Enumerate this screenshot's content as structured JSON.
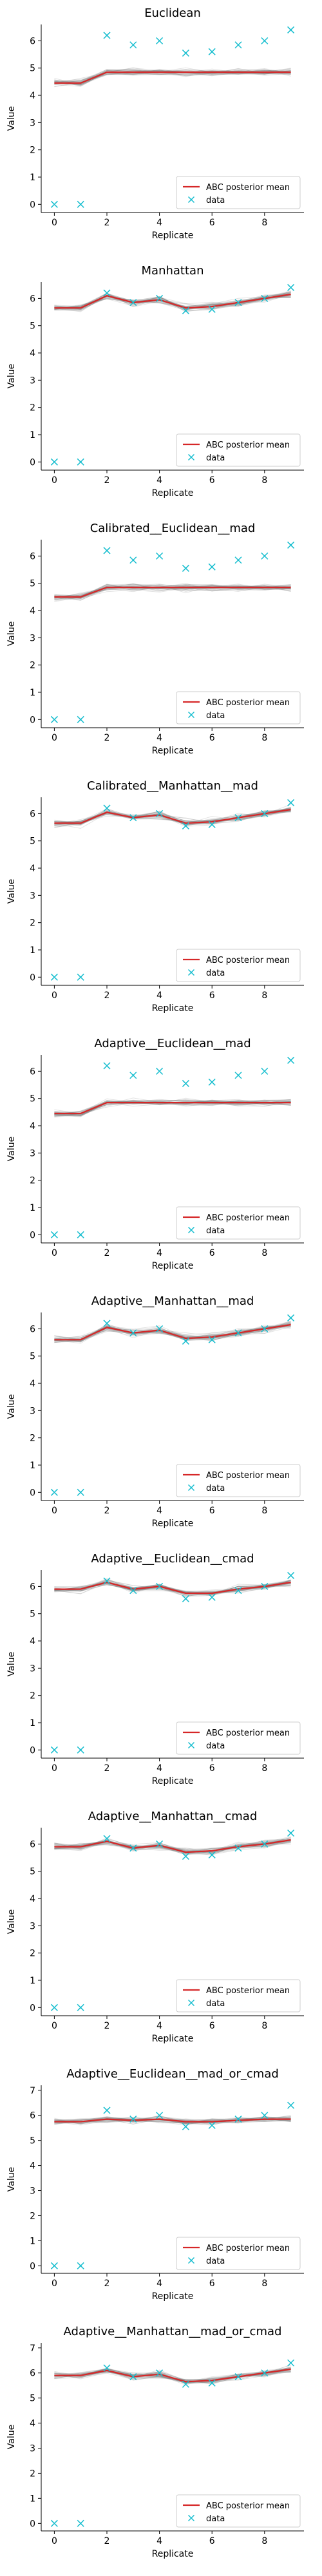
{
  "chart_data": [
    {
      "type": "line",
      "title": "Euclidean",
      "xlabel": "Replicate",
      "ylabel": "Value",
      "xlim": [
        -0.5,
        9.5
      ],
      "ylim": [
        -0.3,
        6.6
      ],
      "xticks": [
        0,
        2,
        4,
        6,
        8
      ],
      "yticks": [
        0,
        1,
        2,
        3,
        4,
        5,
        6
      ],
      "legend_placement": "lower-right",
      "legend": [
        "ABC posterior mean",
        "data"
      ],
      "colors": {
        "mean": "#d62728",
        "data": "#17becf",
        "samples": "#808080"
      },
      "x": [
        0,
        1,
        2,
        3,
        4,
        5,
        6,
        7,
        8,
        9
      ],
      "series": [
        {
          "name": "ABC posterior mean",
          "values": [
            4.45,
            4.45,
            4.85,
            4.85,
            4.85,
            4.85,
            4.85,
            4.85,
            4.85,
            4.85
          ]
        },
        {
          "name": "data",
          "values": [
            0.0,
            0.0,
            6.2,
            5.85,
            6.0,
            5.55,
            5.6,
            5.85,
            6.0,
            6.4
          ]
        }
      ]
    },
    {
      "type": "line",
      "title": "Manhattan",
      "xlabel": "Replicate",
      "ylabel": "Value",
      "xlim": [
        -0.5,
        9.5
      ],
      "ylim": [
        -0.3,
        6.6
      ],
      "xticks": [
        0,
        2,
        4,
        6,
        8
      ],
      "yticks": [
        0,
        1,
        2,
        3,
        4,
        5,
        6
      ],
      "legend_placement": "lower-right",
      "legend": [
        "ABC posterior mean",
        "data"
      ],
      "colors": {
        "mean": "#d62728",
        "data": "#17becf",
        "samples": "#808080"
      },
      "x": [
        0,
        1,
        2,
        3,
        4,
        5,
        6,
        7,
        8,
        9
      ],
      "series": [
        {
          "name": "ABC posterior mean",
          "values": [
            5.65,
            5.65,
            6.1,
            5.85,
            5.95,
            5.65,
            5.7,
            5.85,
            6.0,
            6.15
          ]
        },
        {
          "name": "data",
          "values": [
            0.0,
            0.0,
            6.2,
            5.85,
            6.0,
            5.55,
            5.6,
            5.85,
            6.0,
            6.4
          ]
        }
      ]
    },
    {
      "type": "line",
      "title": "Calibrated__Euclidean__mad",
      "xlabel": "Replicate",
      "ylabel": "Value",
      "xlim": [
        -0.5,
        9.5
      ],
      "ylim": [
        -0.3,
        6.6
      ],
      "xticks": [
        0,
        2,
        4,
        6,
        8
      ],
      "yticks": [
        0,
        1,
        2,
        3,
        4,
        5,
        6
      ],
      "legend_placement": "lower-right",
      "legend": [
        "ABC posterior mean",
        "data"
      ],
      "colors": {
        "mean": "#d62728",
        "data": "#17becf",
        "samples": "#808080"
      },
      "x": [
        0,
        1,
        2,
        3,
        4,
        5,
        6,
        7,
        8,
        9
      ],
      "series": [
        {
          "name": "ABC posterior mean",
          "values": [
            4.5,
            4.5,
            4.85,
            4.85,
            4.85,
            4.85,
            4.85,
            4.85,
            4.85,
            4.85
          ]
        },
        {
          "name": "data",
          "values": [
            0.0,
            0.0,
            6.2,
            5.85,
            6.0,
            5.55,
            5.6,
            5.85,
            6.0,
            6.4
          ]
        }
      ]
    },
    {
      "type": "line",
      "title": "Calibrated__Manhattan__mad",
      "xlabel": "Replicate",
      "ylabel": "Value",
      "xlim": [
        -0.5,
        9.5
      ],
      "ylim": [
        -0.3,
        6.6
      ],
      "xticks": [
        0,
        2,
        4,
        6,
        8
      ],
      "yticks": [
        0,
        1,
        2,
        3,
        4,
        5,
        6
      ],
      "legend_placement": "lower-right",
      "legend": [
        "ABC posterior mean",
        "data"
      ],
      "colors": {
        "mean": "#d62728",
        "data": "#17becf",
        "samples": "#808080"
      },
      "x": [
        0,
        1,
        2,
        3,
        4,
        5,
        6,
        7,
        8,
        9
      ],
      "series": [
        {
          "name": "ABC posterior mean",
          "values": [
            5.65,
            5.65,
            6.05,
            5.85,
            5.95,
            5.65,
            5.7,
            5.85,
            6.0,
            6.15
          ]
        },
        {
          "name": "data",
          "values": [
            0.0,
            0.0,
            6.2,
            5.85,
            6.0,
            5.55,
            5.6,
            5.85,
            6.0,
            6.4
          ]
        }
      ]
    },
    {
      "type": "line",
      "title": "Adaptive__Euclidean__mad",
      "xlabel": "Replicate",
      "ylabel": "Value",
      "xlim": [
        -0.5,
        9.5
      ],
      "ylim": [
        -0.3,
        6.6
      ],
      "xticks": [
        0,
        2,
        4,
        6,
        8
      ],
      "yticks": [
        0,
        1,
        2,
        3,
        4,
        5,
        6
      ],
      "legend_placement": "lower-right",
      "legend": [
        "ABC posterior mean",
        "data"
      ],
      "colors": {
        "mean": "#d62728",
        "data": "#17becf",
        "samples": "#808080"
      },
      "x": [
        0,
        1,
        2,
        3,
        4,
        5,
        6,
        7,
        8,
        9
      ],
      "series": [
        {
          "name": "ABC posterior mean",
          "values": [
            4.45,
            4.45,
            4.85,
            4.85,
            4.85,
            4.85,
            4.85,
            4.85,
            4.85,
            4.85
          ]
        },
        {
          "name": "data",
          "values": [
            0.0,
            0.0,
            6.2,
            5.85,
            6.0,
            5.55,
            5.6,
            5.85,
            6.0,
            6.4
          ]
        }
      ]
    },
    {
      "type": "line",
      "title": "Adaptive__Manhattan__mad",
      "xlabel": "Replicate",
      "ylabel": "Value",
      "xlim": [
        -0.5,
        9.5
      ],
      "ylim": [
        -0.3,
        6.6
      ],
      "xticks": [
        0,
        2,
        4,
        6,
        8
      ],
      "yticks": [
        0,
        1,
        2,
        3,
        4,
        5,
        6
      ],
      "legend_placement": "lower-right",
      "legend": [
        "ABC posterior mean",
        "data"
      ],
      "colors": {
        "mean": "#d62728",
        "data": "#17becf",
        "samples": "#808080"
      },
      "x": [
        0,
        1,
        2,
        3,
        4,
        5,
        6,
        7,
        8,
        9
      ],
      "series": [
        {
          "name": "ABC posterior mean",
          "values": [
            5.6,
            5.6,
            6.05,
            5.85,
            5.95,
            5.65,
            5.7,
            5.85,
            6.0,
            6.15
          ]
        },
        {
          "name": "data",
          "values": [
            0.0,
            0.0,
            6.2,
            5.85,
            6.0,
            5.55,
            5.6,
            5.85,
            6.0,
            6.4
          ]
        }
      ]
    },
    {
      "type": "line",
      "title": "Adaptive__Euclidean__cmad",
      "xlabel": "Replicate",
      "ylabel": "Value",
      "xlim": [
        -0.5,
        9.5
      ],
      "ylim": [
        -0.3,
        6.6
      ],
      "xticks": [
        0,
        2,
        4,
        6,
        8
      ],
      "yticks": [
        0,
        1,
        2,
        3,
        4,
        5,
        6
      ],
      "legend_placement": "lower-right",
      "legend": [
        "ABC posterior mean",
        "data"
      ],
      "colors": {
        "mean": "#d62728",
        "data": "#17becf",
        "samples": "#808080"
      },
      "x": [
        0,
        1,
        2,
        3,
        4,
        5,
        6,
        7,
        8,
        9
      ],
      "series": [
        {
          "name": "ABC posterior mean",
          "values": [
            5.9,
            5.9,
            6.15,
            5.9,
            6.0,
            5.75,
            5.75,
            5.9,
            6.0,
            6.15
          ]
        },
        {
          "name": "data",
          "values": [
            0.0,
            0.0,
            6.2,
            5.85,
            6.0,
            5.55,
            5.6,
            5.85,
            6.0,
            6.4
          ]
        }
      ]
    },
    {
      "type": "line",
      "title": "Adaptive__Manhattan__cmad",
      "xlabel": "Replicate",
      "ylabel": "Value",
      "xlim": [
        -0.5,
        9.5
      ],
      "ylim": [
        -0.3,
        6.6
      ],
      "xticks": [
        0,
        2,
        4,
        6,
        8
      ],
      "yticks": [
        0,
        1,
        2,
        3,
        4,
        5,
        6
      ],
      "legend_placement": "lower-right",
      "legend": [
        "ABC posterior mean",
        "data"
      ],
      "colors": {
        "mean": "#d62728",
        "data": "#17becf",
        "samples": "#808080"
      },
      "x": [
        0,
        1,
        2,
        3,
        4,
        5,
        6,
        7,
        8,
        9
      ],
      "series": [
        {
          "name": "ABC posterior mean",
          "values": [
            5.9,
            5.9,
            6.1,
            5.85,
            5.95,
            5.7,
            5.75,
            5.9,
            6.0,
            6.15
          ]
        },
        {
          "name": "data",
          "values": [
            0.0,
            0.0,
            6.2,
            5.85,
            6.0,
            5.55,
            5.6,
            5.85,
            6.0,
            6.4
          ]
        }
      ]
    },
    {
      "type": "line",
      "title": "Adaptive__Euclidean__mad_or_cmad",
      "xlabel": "Replicate",
      "ylabel": "Value",
      "xlim": [
        -0.5,
        9.5
      ],
      "ylim": [
        -0.3,
        7.2
      ],
      "xticks": [
        0,
        2,
        4,
        6,
        8
      ],
      "yticks": [
        0,
        1,
        2,
        3,
        4,
        5,
        6,
        7
      ],
      "legend_placement": "lower-right",
      "legend": [
        "ABC posterior mean",
        "data"
      ],
      "colors": {
        "mean": "#d62728",
        "data": "#17becf",
        "samples": "#808080"
      },
      "x": [
        0,
        1,
        2,
        3,
        4,
        5,
        6,
        7,
        8,
        9
      ],
      "series": [
        {
          "name": "ABC posterior mean",
          "values": [
            5.75,
            5.75,
            5.85,
            5.8,
            5.85,
            5.75,
            5.75,
            5.8,
            5.85,
            5.85
          ]
        },
        {
          "name": "data",
          "values": [
            0.0,
            0.0,
            6.2,
            5.85,
            6.0,
            5.55,
            5.6,
            5.85,
            6.0,
            6.4
          ]
        }
      ]
    },
    {
      "type": "line",
      "title": "Adaptive__Manhattan__mad_or_cmad",
      "xlabel": "Replicate",
      "ylabel": "Value",
      "xlim": [
        -0.5,
        9.5
      ],
      "ylim": [
        -0.3,
        7.2
      ],
      "xticks": [
        0,
        2,
        4,
        6,
        8
      ],
      "yticks": [
        0,
        1,
        2,
        3,
        4,
        5,
        6,
        7
      ],
      "legend_placement": "lower-right",
      "legend": [
        "ABC posterior mean",
        "data"
      ],
      "colors": {
        "mean": "#d62728",
        "data": "#17becf",
        "samples": "#808080"
      },
      "x": [
        0,
        1,
        2,
        3,
        4,
        5,
        6,
        7,
        8,
        9
      ],
      "series": [
        {
          "name": "ABC posterior mean",
          "values": [
            5.9,
            5.9,
            6.1,
            5.85,
            5.95,
            5.65,
            5.7,
            5.85,
            6.0,
            6.15
          ]
        },
        {
          "name": "data",
          "values": [
            0.0,
            0.0,
            6.2,
            5.85,
            6.0,
            5.55,
            5.6,
            5.85,
            6.0,
            6.4
          ]
        }
      ]
    }
  ]
}
